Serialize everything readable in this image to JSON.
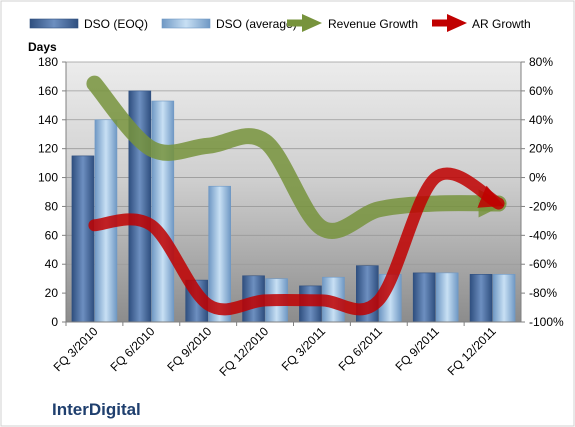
{
  "chart_data": {
    "type": "bar",
    "company": "InterDigital",
    "categories": [
      "FQ 3/2010",
      "FQ 6/2010",
      "FQ 9/2010",
      "FQ 12/2010",
      "FQ 3/2011",
      "FQ 6/2011",
      "FQ 9/2011",
      "FQ 12/2011"
    ],
    "ylabel": "Days",
    "ylim": [
      0,
      180
    ],
    "yticks": [
      0,
      20,
      40,
      60,
      80,
      100,
      120,
      140,
      160,
      180
    ],
    "y2lim": [
      -100,
      80
    ],
    "y2ticks": [
      "-100%",
      "-80%",
      "-60%",
      "-40%",
      "-20%",
      "0%",
      "20%",
      "40%",
      "60%",
      "80%"
    ],
    "series": [
      {
        "name": "DSO (EOQ)",
        "kind": "bar",
        "axis": "left",
        "color": "#4a6a9a",
        "values": [
          115,
          160,
          29,
          32,
          25,
          39,
          34,
          33
        ]
      },
      {
        "name": "DSO (average)",
        "kind": "bar",
        "axis": "left",
        "color": "#9cc0e2",
        "values": [
          140,
          153,
          94,
          30,
          31,
          33,
          34,
          33
        ]
      },
      {
        "name": "Revenue Growth",
        "kind": "line",
        "axis": "right",
        "unit": "%",
        "color": "#77933c",
        "values": [
          65,
          20,
          22,
          25,
          -35,
          -22,
          -18,
          -18
        ]
      },
      {
        "name": "AR Growth",
        "kind": "line",
        "axis": "right",
        "unit": "%",
        "color": "#c00000",
        "values": [
          -33,
          -33,
          -88,
          -85,
          -85,
          -85,
          0,
          -18
        ]
      }
    ],
    "legend_position": "top",
    "grid": true
  }
}
